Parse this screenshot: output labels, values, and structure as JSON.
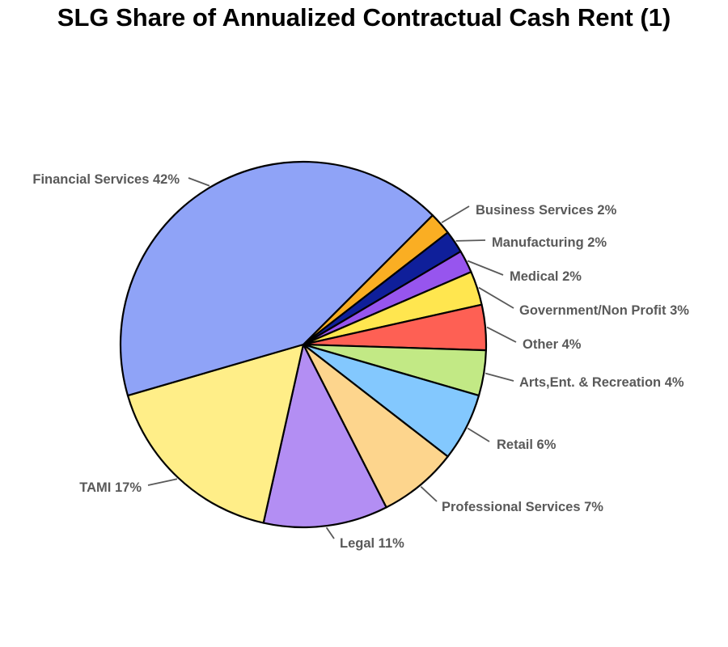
{
  "chart_data": {
    "type": "pie",
    "title": "SLG Share of Annualized Contractual Cash Rent (1)",
    "start_angle_deg_clockwise_from_top": 45,
    "direction": "clockwise",
    "slices": [
      {
        "label": "Business Services",
        "value": 2,
        "display": "Business Services 2%",
        "color": "#FAAE23"
      },
      {
        "label": "Manufacturing",
        "value": 2,
        "display": "Manufacturing 2%",
        "color": "#0F1F9A"
      },
      {
        "label": "Medical",
        "value": 2,
        "display": "Medical 2%",
        "color": "#9755EE"
      },
      {
        "label": "Government/Non Profit",
        "value": 3,
        "display": "Government/Non Profit 3%",
        "color": "#FFE64F"
      },
      {
        "label": "Other",
        "value": 4,
        "display": "Other 4%",
        "color": "#FE6054"
      },
      {
        "label": "Arts,Ent. & Recreation",
        "value": 4,
        "display": "Arts,Ent. & Recreation 4%",
        "color": "#C2E985"
      },
      {
        "label": "Retail",
        "value": 6,
        "display": "Retail 6%",
        "color": "#83C8FE"
      },
      {
        "label": "Professional Services",
        "value": 7,
        "display": "Professional Services 7%",
        "color": "#FDD58D"
      },
      {
        "label": "Legal",
        "value": 11,
        "display": "Legal 11%",
        "color": "#B38EF3"
      },
      {
        "label": "TAMI",
        "value": 17,
        "display": "TAMI 17%",
        "color": "#FFEE88"
      },
      {
        "label": "Financial Services",
        "value": 42,
        "display": "Financial Services 42%",
        "color": "#8FA3F7"
      }
    ]
  }
}
